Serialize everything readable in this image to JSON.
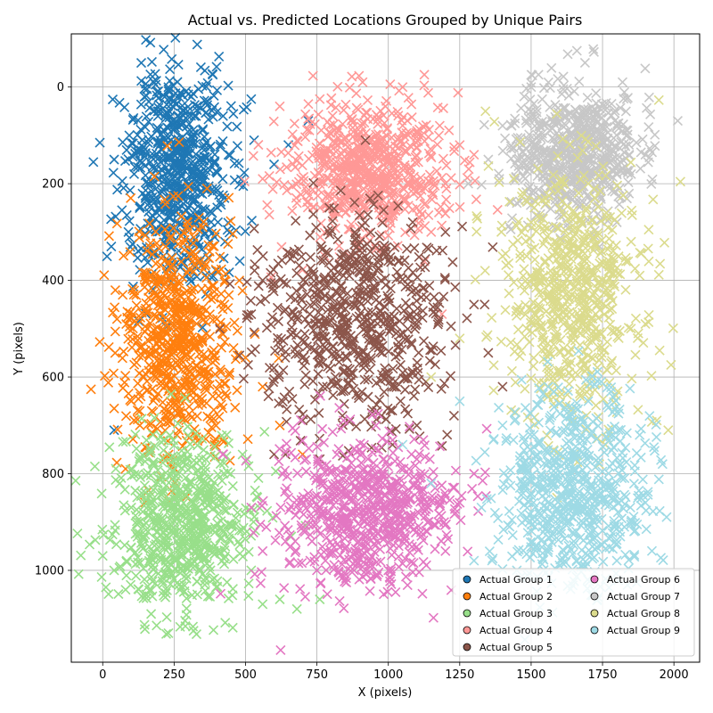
{
  "chart_data": {
    "type": "scatter",
    "title": "Actual vs. Predicted Locations Grouped by Unique Pairs",
    "xlabel": "X (pixels)",
    "ylabel": "Y (pixels)",
    "xlim": [
      -110,
      2090
    ],
    "ylim": [
      1190,
      -110
    ],
    "y_inverted": true,
    "grid": true,
    "marker": "x",
    "legend_placement": "lower-right",
    "x_ticks": [
      0,
      250,
      500,
      750,
      1000,
      1250,
      1500,
      1750,
      2000
    ],
    "y_ticks": [
      0,
      200,
      400,
      600,
      800,
      1000
    ],
    "series": [
      {
        "name": "Actual Group 1",
        "color": "#1f77b4",
        "center": [
          260,
          170
        ],
        "spread": [
          90,
          110
        ],
        "points": [
          [
            190,
            10
          ],
          [
            230,
            5
          ],
          [
            310,
            20
          ],
          [
            520,
            25
          ],
          [
            -10,
            115
          ],
          [
            40,
            150
          ],
          [
            30,
            330
          ],
          [
            40,
            710
          ],
          [
            90,
            300
          ],
          [
            110,
            180
          ],
          [
            150,
            230
          ],
          [
            240,
            260
          ],
          [
            300,
            320
          ],
          [
            420,
            190
          ],
          [
            530,
            110
          ],
          [
            600,
            160
          ],
          [
            720,
            70
          ],
          [
            650,
            120
          ],
          [
            480,
            360
          ],
          [
            350,
            90
          ]
        ]
      },
      {
        "name": "Actual Group 2",
        "color": "#ff7f0e",
        "center": [
          260,
          520
        ],
        "spread": [
          100,
          120
        ],
        "points": [
          [
            50,
            480
          ],
          [
            40,
            665
          ],
          [
            70,
            430
          ],
          [
            80,
            790
          ],
          [
            100,
            650
          ],
          [
            130,
            700
          ],
          [
            150,
            400
          ],
          [
            220,
            330
          ],
          [
            350,
            290
          ],
          [
            420,
            460
          ],
          [
            500,
            560
          ],
          [
            560,
            620
          ],
          [
            620,
            700
          ],
          [
            700,
            760
          ],
          [
            330,
            360
          ],
          [
            260,
            720
          ]
        ]
      },
      {
        "name": "Actual Group 3",
        "color": "#98df8a",
        "center": [
          280,
          900
        ],
        "spread": [
          120,
          90
        ],
        "points": [
          [
            0,
            970
          ],
          [
            40,
            1000
          ],
          [
            80,
            1040
          ],
          [
            230,
            1130
          ],
          [
            560,
            1070
          ],
          [
            680,
            1080
          ],
          [
            760,
            1060
          ],
          [
            620,
            1060
          ],
          [
            400,
            1035
          ],
          [
            130,
            900
          ],
          [
            60,
            820
          ],
          [
            100,
            870
          ],
          [
            300,
            960
          ],
          [
            520,
            1000
          ],
          [
            660,
            930
          ]
        ]
      },
      {
        "name": "Actual Group 4",
        "color": "#ff9896",
        "center": [
          920,
          170
        ],
        "spread": [
          140,
          70
        ],
        "points": [
          [
            1050,
            0
          ],
          [
            910,
            -10
          ],
          [
            760,
            25
          ],
          [
            720,
            35
          ],
          [
            620,
            40
          ],
          [
            990,
            40
          ],
          [
            1180,
            80
          ],
          [
            1250,
            120
          ],
          [
            1150,
            300
          ],
          [
            1300,
            140
          ],
          [
            1100,
            250
          ],
          [
            850,
            260
          ],
          [
            680,
            240
          ],
          [
            560,
            190
          ],
          [
            1200,
            200
          ]
        ]
      },
      {
        "name": "Actual Group 5",
        "color": "#8c564b",
        "center": [
          880,
          480
        ],
        "spread": [
          160,
          110
        ],
        "points": [
          [
            560,
            400
          ],
          [
            520,
            470
          ],
          [
            580,
            640
          ],
          [
            640,
            760
          ],
          [
            600,
            760
          ],
          [
            700,
            690
          ],
          [
            760,
            770
          ],
          [
            1200,
            300
          ],
          [
            1300,
            450
          ],
          [
            1350,
            550
          ],
          [
            1400,
            620
          ],
          [
            1230,
            680
          ],
          [
            1100,
            700
          ],
          [
            920,
            110
          ],
          [
            1000,
            360
          ]
        ]
      },
      {
        "name": "Actual Group 6",
        "color": "#e377c2",
        "center": [
          920,
          880
        ],
        "spread": [
          150,
          80
        ],
        "points": [
          [
            420,
            760
          ],
          [
            520,
            870
          ],
          [
            560,
            960
          ],
          [
            640,
            940
          ],
          [
            750,
            1000
          ],
          [
            880,
            1000
          ],
          [
            1000,
            1000
          ],
          [
            1200,
            960
          ],
          [
            1250,
            860
          ],
          [
            1300,
            800
          ],
          [
            1100,
            770
          ],
          [
            950,
            790
          ],
          [
            820,
            760
          ],
          [
            700,
            860
          ]
        ]
      },
      {
        "name": "Actual Group 7",
        "color": "#c7c7c7",
        "center": [
          1650,
          140
        ],
        "spread": [
          110,
          70
        ],
        "points": [
          [
            1760,
            40
          ],
          [
            1820,
            -10
          ],
          [
            1500,
            0
          ],
          [
            1900,
            140
          ],
          [
            1850,
            180
          ],
          [
            1500,
            50
          ],
          [
            1400,
            80
          ],
          [
            1350,
            150
          ],
          [
            1280,
            200
          ],
          [
            1450,
            240
          ],
          [
            1600,
            60
          ],
          [
            1720,
            210
          ],
          [
            1550,
            200
          ],
          [
            1800,
            280
          ]
        ]
      },
      {
        "name": "Actual Group 8",
        "color": "#dbdb8d",
        "center": [
          1640,
          420
        ],
        "spread": [
          120,
          130
        ],
        "points": [
          [
            1340,
            50
          ],
          [
            1990,
            575
          ],
          [
            1950,
            545
          ],
          [
            1980,
            710
          ],
          [
            1940,
            690
          ],
          [
            1900,
            490
          ],
          [
            1880,
            390
          ],
          [
            1850,
            320
          ],
          [
            1250,
            520
          ],
          [
            1150,
            600
          ],
          [
            1400,
            350
          ],
          [
            1500,
            280
          ],
          [
            1760,
            740
          ],
          [
            1600,
            640
          ],
          [
            1700,
            200
          ]
        ]
      },
      {
        "name": "Actual Group 9",
        "color": "#9edae5",
        "center": [
          1640,
          840
        ],
        "spread": [
          130,
          100
        ],
        "points": [
          [
            1960,
            780
          ],
          [
            1930,
            745
          ],
          [
            1880,
            720
          ],
          [
            1900,
            860
          ],
          [
            1800,
            980
          ],
          [
            1450,
            1000
          ],
          [
            1300,
            980
          ],
          [
            1150,
            820
          ],
          [
            1050,
            740
          ],
          [
            1250,
            650
          ],
          [
            1400,
            700
          ],
          [
            1560,
            620
          ],
          [
            1700,
            650
          ],
          [
            1850,
            900
          ]
        ]
      }
    ]
  }
}
